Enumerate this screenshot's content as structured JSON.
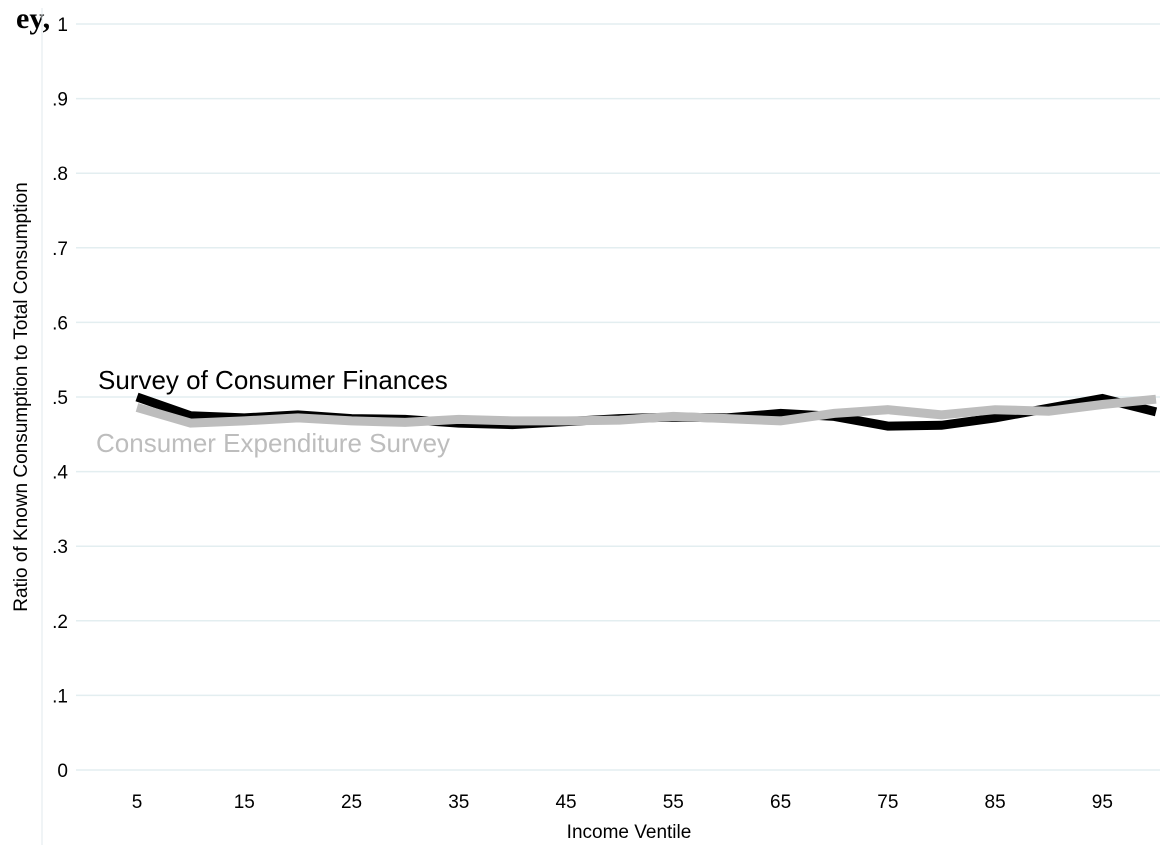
{
  "page": {
    "top_fragment": "ey,"
  },
  "chart_data": {
    "type": "line",
    "title": "",
    "xlabel": "Income Ventile",
    "ylabel": "Ratio of Known Consumption to Total Consumption",
    "x": [
      5,
      10,
      15,
      20,
      25,
      30,
      35,
      40,
      45,
      50,
      55,
      60,
      65,
      70,
      75,
      80,
      85,
      90,
      95,
      100
    ],
    "xticks": [
      5,
      15,
      25,
      35,
      45,
      55,
      65,
      75,
      85,
      95
    ],
    "xtick_labels": [
      "5",
      "15",
      "25",
      "35",
      "45",
      "55",
      "65",
      "75",
      "85",
      "95"
    ],
    "yticks": [
      0,
      0.1,
      0.2,
      0.3,
      0.4,
      0.5,
      0.6,
      0.7,
      0.8,
      0.9,
      1
    ],
    "ytick_labels": [
      "0",
      ".1",
      ".2",
      ".3",
      ".4",
      ".5",
      ".6",
      ".7",
      ".8",
      ".9",
      "1"
    ],
    "xlim": [
      0,
      100
    ],
    "ylim": [
      0,
      1
    ],
    "grid": "horizontal",
    "legend": "inline labels",
    "series": [
      {
        "name": "Survey of Consumer Finances",
        "color": "#000000",
        "values": [
          0.5,
          0.475,
          0.472,
          0.476,
          0.471,
          0.47,
          0.465,
          0.463,
          0.467,
          0.471,
          0.473,
          0.472,
          0.478,
          0.474,
          0.461,
          0.462,
          0.472,
          0.485,
          0.498,
          0.48
        ]
      },
      {
        "name": "Consumer Expenditure Survey",
        "color": "#bdbdbd",
        "values": [
          0.486,
          0.465,
          0.468,
          0.472,
          0.468,
          0.466,
          0.47,
          0.468,
          0.468,
          0.469,
          0.474,
          0.471,
          0.468,
          0.478,
          0.483,
          0.476,
          0.483,
          0.481,
          0.49,
          0.497
        ]
      }
    ]
  }
}
